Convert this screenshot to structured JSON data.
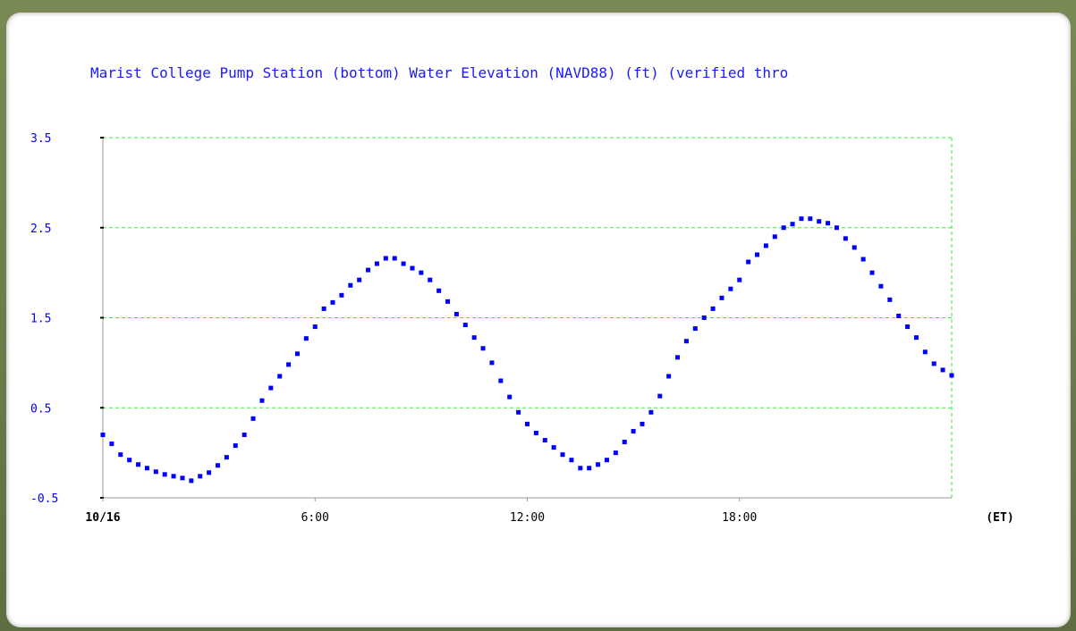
{
  "colors": {
    "series": "#0000ff",
    "grid": "#33ee33",
    "axis": "#999999",
    "ytick_label": "#0000ff",
    "xtick_label": "#000000",
    "title": "#1a1aff"
  },
  "chart_data": {
    "type": "scatter",
    "title": "Marist College Pump Station (bottom) Water Elevation (NAVD88) (ft) (verified thro",
    "xunit": "(ET)",
    "xlim": [
      0,
      24
    ],
    "ylim": [
      -0.5,
      3.5
    ],
    "yticks": [
      -0.5,
      0.5,
      1.5,
      2.5,
      3.5
    ],
    "ytick_labels": [
      "-0.5",
      "0.5",
      "1.5",
      "2.5",
      "3.5"
    ],
    "xticks": [
      0,
      6,
      12,
      18
    ],
    "xtick_labels": [
      "10/16",
      "6:00",
      "12:00",
      "18:00"
    ],
    "grid": true,
    "series": [
      {
        "x": [
          0,
          0.25,
          0.5,
          0.75,
          1,
          1.25,
          1.5,
          1.75,
          2,
          2.25,
          2.5,
          2.75,
          3,
          3.25,
          3.5,
          3.75,
          4,
          4.25,
          4.5,
          4.75,
          5,
          5.25,
          5.5,
          5.75,
          6,
          6.25,
          6.5,
          6.75,
          7,
          7.25,
          7.5,
          7.75,
          8,
          8.25,
          8.5,
          8.75,
          9,
          9.25,
          9.5,
          9.75,
          10,
          10.25,
          10.5,
          10.75,
          11,
          11.25,
          11.5,
          11.75,
          12,
          12.25,
          12.5,
          12.75,
          13,
          13.25,
          13.5,
          13.75,
          14,
          14.25,
          14.5,
          14.75,
          15,
          15.25,
          15.5,
          15.75,
          16,
          16.25,
          16.5,
          16.75,
          17,
          17.25,
          17.5,
          17.75,
          18,
          18.25,
          18.5,
          18.75,
          19,
          19.25,
          19.5,
          19.75,
          20,
          20.25,
          20.5,
          20.75,
          21,
          21.25,
          21.5,
          21.75,
          22,
          22.25,
          22.5,
          22.75,
          23,
          23.25,
          23.5,
          23.75,
          24
        ],
        "y": [
          0.2,
          0.1,
          -0.02,
          -0.08,
          -0.13,
          -0.17,
          -0.21,
          -0.24,
          -0.26,
          -0.28,
          -0.31,
          -0.26,
          -0.22,
          -0.14,
          -0.05,
          0.08,
          0.2,
          0.38,
          0.58,
          0.72,
          0.85,
          0.98,
          1.1,
          1.27,
          1.4,
          1.6,
          1.67,
          1.75,
          1.86,
          1.92,
          2.03,
          2.1,
          2.16,
          2.16,
          2.1,
          2.05,
          2.0,
          1.92,
          1.8,
          1.68,
          1.54,
          1.42,
          1.28,
          1.16,
          1.0,
          0.8,
          0.62,
          0.45,
          0.32,
          0.22,
          0.14,
          0.06,
          -0.02,
          -0.08,
          -0.17,
          -0.17,
          -0.13,
          -0.08,
          0.0,
          0.12,
          0.24,
          0.32,
          0.45,
          0.63,
          0.85,
          1.06,
          1.24,
          1.38,
          1.5,
          1.6,
          1.72,
          1.82,
          1.92,
          2.12,
          2.2,
          2.3,
          2.4,
          2.5,
          2.54,
          2.6,
          2.6,
          2.57,
          2.55,
          2.5,
          2.38,
          2.28,
          2.15,
          2.0,
          1.85,
          1.7,
          1.52,
          1.4,
          1.28,
          1.12,
          0.99,
          0.92,
          0.86
        ]
      }
    ]
  }
}
